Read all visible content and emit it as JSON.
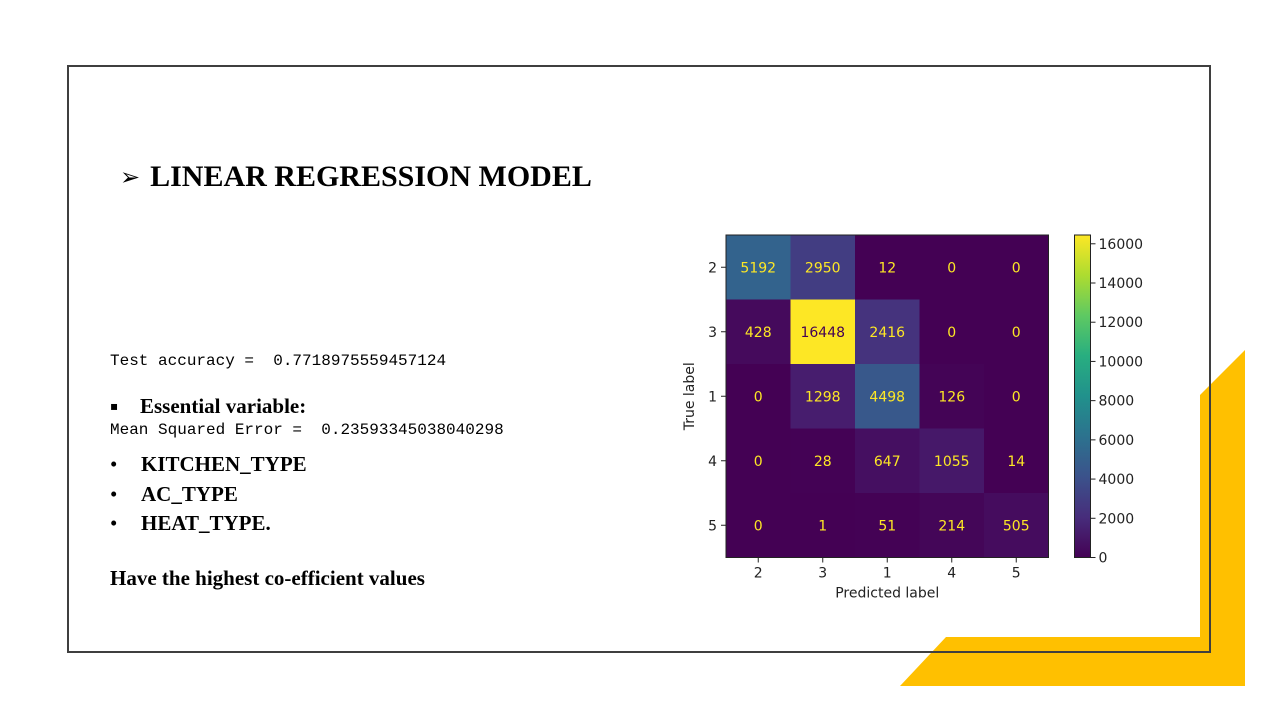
{
  "slide": {
    "title_arrow": "➢",
    "title": "LINEAR REGRESSION MODEL",
    "metrics": [
      "Test accuracy =  0.7718975559457124",
      "Mean Squared Error =  0.23593345038040298"
    ],
    "essential_bullet": "▪",
    "essential_label": "Essential variable:",
    "variables": [
      {
        "bullet": "•",
        "name": "KITCHEN_TYPE"
      },
      {
        "bullet": "•",
        "name": "AC_TYPE"
      },
      {
        "bullet": "•",
        "name": "HEAT_TYPE."
      }
    ],
    "footnote": "Have the highest co-efficient values"
  },
  "colors": {
    "accent": "#FFC000",
    "frame": "#3f3f3f"
  },
  "chart_data": {
    "type": "heatmap",
    "title": "",
    "xlabel": "Predicted label",
    "ylabel": "True label",
    "x_categories": [
      "2",
      "3",
      "1",
      "4",
      "5"
    ],
    "y_categories": [
      "2",
      "3",
      "1",
      "4",
      "5"
    ],
    "values": [
      [
        5192,
        2950,
        12,
        0,
        0
      ],
      [
        428,
        16448,
        2416,
        0,
        0
      ],
      [
        0,
        1298,
        4498,
        126,
        0
      ],
      [
        0,
        28,
        647,
        1055,
        14
      ],
      [
        0,
        1,
        51,
        214,
        505
      ]
    ],
    "colormap": "viridis",
    "colorbar_range": [
      0,
      16448
    ],
    "colorbar_ticks": [
      0,
      2000,
      4000,
      6000,
      8000,
      10000,
      12000,
      14000,
      16000
    ],
    "colorbar_tick_labels": [
      "0",
      "2000",
      "4000",
      "6000",
      "8000",
      "10000",
      "12000",
      "14000",
      "16000"
    ]
  }
}
